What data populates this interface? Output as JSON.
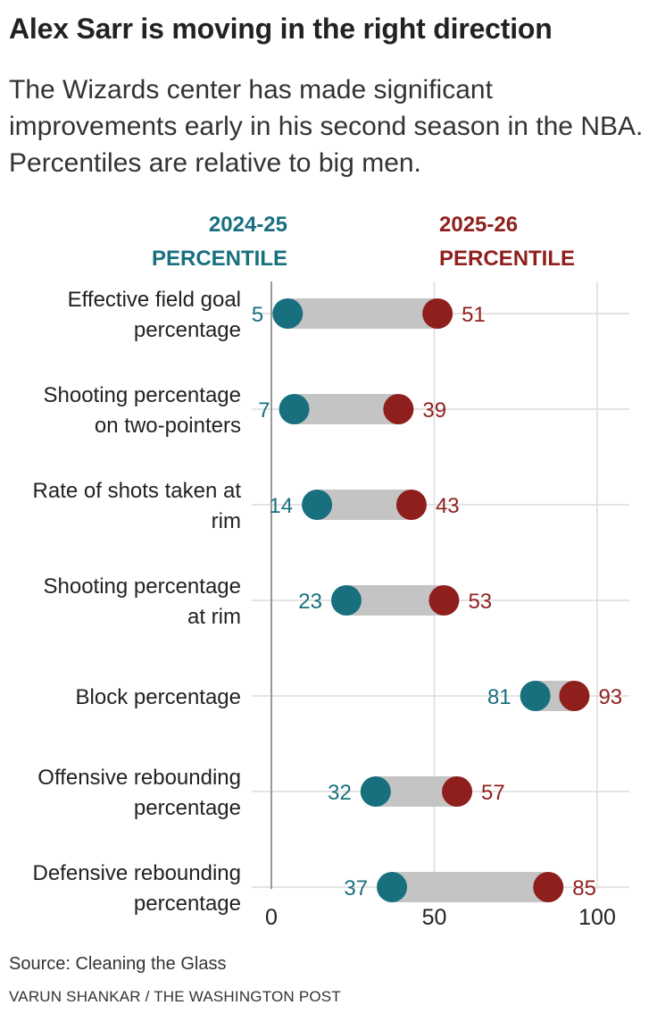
{
  "title": "Alex Sarr is moving in the right direction",
  "subtitle": "The Wizards center has made significant improvements early in his second season in the NBA. Percentiles are relative to big men.",
  "source": "Source: Cleaning the Glass",
  "credit": "VARUN SHANKAR / THE WASHINGTON POST",
  "colors": {
    "series_2024": "#18707f",
    "series_2025": "#8f1f1d",
    "connector": "#c4c4c4",
    "grid": "#dcdcdc",
    "baseline": "#999999",
    "text": "#222222"
  },
  "chart_data": {
    "type": "dumbbell",
    "xlim": [
      0,
      100
    ],
    "xticks": [
      0,
      50,
      100
    ],
    "grid": true,
    "series": [
      {
        "name": "2024-25",
        "label_lines": [
          "2024-25",
          "PERCENTILE"
        ],
        "color": "#18707f"
      },
      {
        "name": "2025-26",
        "label_lines": [
          "2025-26",
          "PERCENTILE"
        ],
        "color": "#8f1f1d"
      }
    ],
    "categories": [
      {
        "label_lines": [
          "Effective field goal",
          "percentage"
        ],
        "v2024": 5,
        "v2025": 51
      },
      {
        "label_lines": [
          "Shooting percentage",
          "on two-pointers"
        ],
        "v2024": 7,
        "v2025": 39
      },
      {
        "label_lines": [
          "Rate of shots taken at",
          "rim"
        ],
        "v2024": 14,
        "v2025": 43
      },
      {
        "label_lines": [
          "Shooting percentage",
          "at rim"
        ],
        "v2024": 23,
        "v2025": 53
      },
      {
        "label_lines": [
          "Block percentage"
        ],
        "v2024": 81,
        "v2025": 93
      },
      {
        "label_lines": [
          "Offensive rebounding",
          "percentage"
        ],
        "v2024": 32,
        "v2025": 57
      },
      {
        "label_lines": [
          "Defensive rebounding",
          "percentage"
        ],
        "v2024": 37,
        "v2025": 85
      }
    ]
  }
}
